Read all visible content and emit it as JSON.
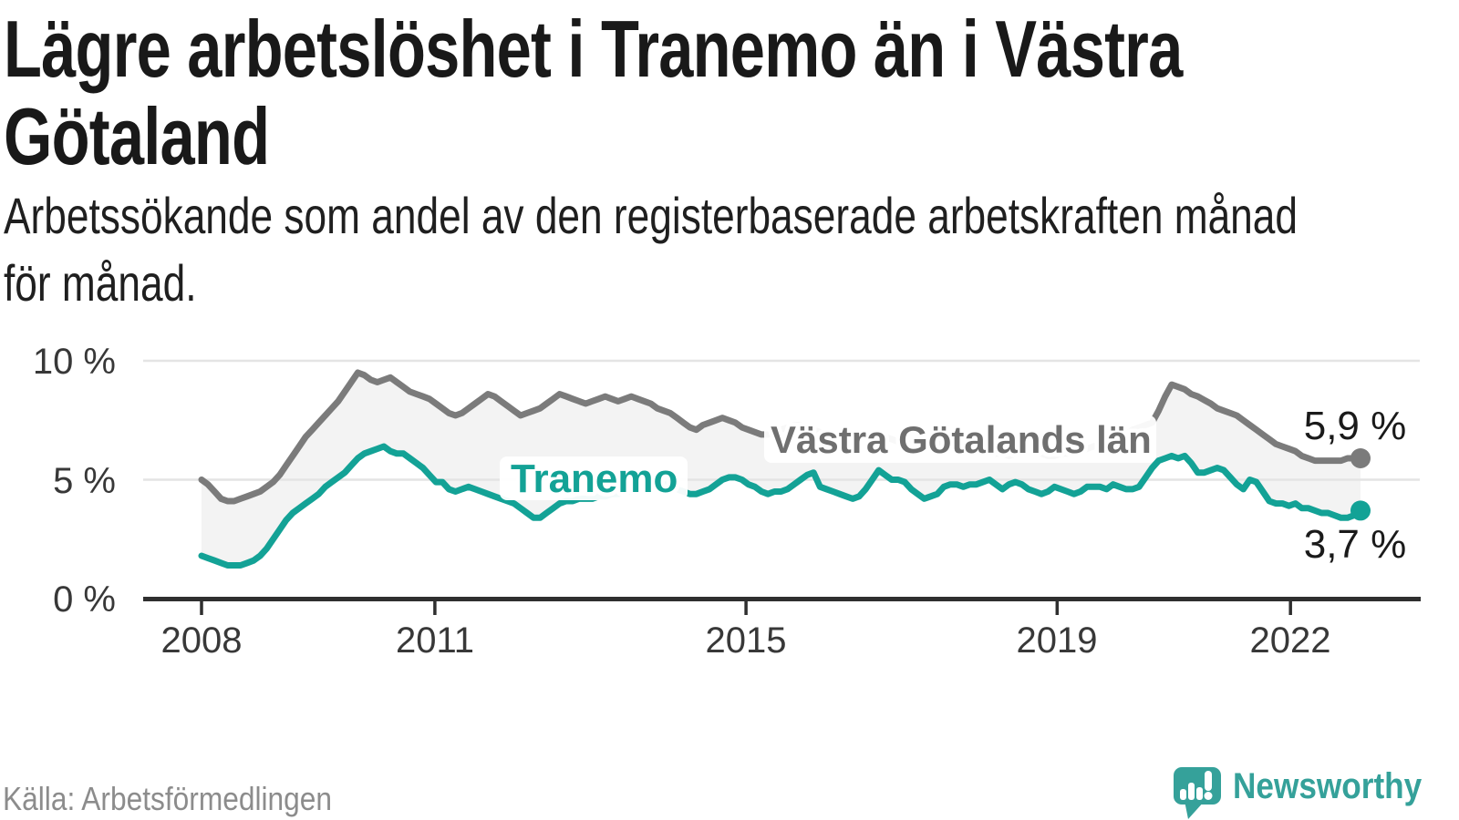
{
  "header": {
    "title_lines": [
      "Lägre arbetslöshet i Tranemo än i Västra",
      "Götaland"
    ],
    "subtitle_lines": [
      "Arbetssökande som andel av den registerbaserade arbetskraften månad",
      "för månad."
    ]
  },
  "chart_data": {
    "type": "line",
    "title": "Lägre arbetslöshet i Tranemo än i Västra Götaland",
    "subtitle": "Arbetssökande som andel av den registerbaserade arbetskraften månad för månad.",
    "unit": "%",
    "x_start": "2008-01",
    "x_end": "2022-11",
    "x_frequency": "monthly",
    "ylim": [
      0,
      10.5
    ],
    "grid": "horizontal",
    "yticks": [
      0,
      5,
      10
    ],
    "ytick_labels": [
      "0 %",
      "5 %",
      "10 %"
    ],
    "xticks": [
      2008,
      2011,
      2015,
      2019,
      2022
    ],
    "xtick_labels": [
      "2008",
      "2011",
      "2015",
      "2019",
      "2022"
    ],
    "legend_position": "inline-labels-on-lines",
    "fill_between_color": "#f3f3f3",
    "series": [
      {
        "name": "Västra Götalands län",
        "color": "#7b7b7b",
        "end_label": "5,9 %",
        "end_value": 5.9,
        "values": [
          5.0,
          4.8,
          4.5,
          4.2,
          4.1,
          4.1,
          4.2,
          4.3,
          4.4,
          4.5,
          4.7,
          4.9,
          5.2,
          5.6,
          6.0,
          6.4,
          6.8,
          7.1,
          7.4,
          7.7,
          8.0,
          8.3,
          8.7,
          9.1,
          9.5,
          9.4,
          9.2,
          9.1,
          9.2,
          9.3,
          9.1,
          8.9,
          8.7,
          8.6,
          8.5,
          8.4,
          8.2,
          8.0,
          7.8,
          7.7,
          7.8,
          8.0,
          8.2,
          8.4,
          8.6,
          8.5,
          8.3,
          8.1,
          7.9,
          7.7,
          7.8,
          7.9,
          8.0,
          8.2,
          8.4,
          8.6,
          8.5,
          8.4,
          8.3,
          8.2,
          8.3,
          8.4,
          8.5,
          8.4,
          8.3,
          8.4,
          8.5,
          8.4,
          8.3,
          8.2,
          8.0,
          7.9,
          7.8,
          7.6,
          7.4,
          7.2,
          7.1,
          7.3,
          7.4,
          7.5,
          7.6,
          7.5,
          7.4,
          7.2,
          7.1,
          7.0,
          6.9,
          6.9,
          7.0,
          7.1,
          7.2,
          7.3,
          7.3,
          7.2,
          7.1,
          7.0,
          6.9,
          6.9,
          6.8,
          6.8,
          6.7,
          6.8,
          6.9,
          6.9,
          6.8,
          6.8,
          6.7,
          6.6,
          6.6,
          6.5,
          6.5,
          6.4,
          6.4,
          6.5,
          6.5,
          6.6,
          6.5,
          6.5,
          6.4,
          6.3,
          6.2,
          6.2,
          6.1,
          6.1,
          6.0,
          6.1,
          6.1,
          6.2,
          6.1,
          6.1,
          6.0,
          6.0,
          6.1,
          6.1,
          6.2,
          6.2,
          6.3,
          6.4,
          6.5,
          6.6,
          6.6,
          6.7,
          6.9,
          7.1,
          7.2,
          7.3,
          7.4,
          7.9,
          8.5,
          9.0,
          8.9,
          8.8,
          8.6,
          8.5,
          8.35,
          8.2,
          8.0,
          7.9,
          7.8,
          7.7,
          7.5,
          7.3,
          7.1,
          6.9,
          6.7,
          6.5,
          6.4,
          6.3,
          6.2,
          6.0,
          5.9,
          5.8,
          5.8,
          5.8,
          5.8,
          5.8,
          5.9,
          5.9,
          5.9
        ]
      },
      {
        "name": "Tranemo",
        "color": "#13a296",
        "end_label": "3,7 %",
        "end_value": 3.7,
        "values": [
          1.8,
          1.7,
          1.6,
          1.5,
          1.4,
          1.4,
          1.4,
          1.5,
          1.6,
          1.8,
          2.1,
          2.5,
          2.9,
          3.3,
          3.6,
          3.8,
          4.0,
          4.2,
          4.4,
          4.7,
          4.9,
          5.1,
          5.3,
          5.6,
          5.9,
          6.1,
          6.2,
          6.3,
          6.4,
          6.2,
          6.1,
          6.1,
          5.9,
          5.7,
          5.5,
          5.2,
          4.9,
          4.9,
          4.6,
          4.5,
          4.6,
          4.7,
          4.6,
          4.5,
          4.4,
          4.3,
          4.2,
          4.1,
          4.0,
          3.8,
          3.6,
          3.4,
          3.4,
          3.6,
          3.8,
          4.0,
          4.1,
          4.1,
          4.2,
          4.2,
          4.2,
          4.3,
          4.3,
          4.4,
          4.4,
          4.5,
          4.5,
          4.6,
          4.6,
          4.7,
          4.7,
          4.8,
          4.8,
          4.6,
          4.5,
          4.4,
          4.4,
          4.5,
          4.6,
          4.8,
          5.0,
          5.1,
          5.1,
          5.0,
          4.8,
          4.7,
          4.5,
          4.4,
          4.5,
          4.5,
          4.6,
          4.8,
          5.0,
          5.2,
          5.3,
          4.7,
          4.6,
          4.5,
          4.4,
          4.3,
          4.2,
          4.3,
          4.6,
          5.0,
          5.4,
          5.2,
          5.0,
          5.0,
          4.9,
          4.6,
          4.4,
          4.2,
          4.3,
          4.4,
          4.7,
          4.8,
          4.8,
          4.7,
          4.8,
          4.8,
          4.9,
          5.0,
          4.8,
          4.6,
          4.8,
          4.9,
          4.8,
          4.6,
          4.5,
          4.4,
          4.5,
          4.7,
          4.6,
          4.5,
          4.4,
          4.5,
          4.7,
          4.7,
          4.7,
          4.6,
          4.8,
          4.7,
          4.6,
          4.6,
          4.7,
          5.1,
          5.5,
          5.8,
          5.9,
          6.0,
          5.9,
          6.0,
          5.7,
          5.3,
          5.3,
          5.4,
          5.5,
          5.4,
          5.1,
          4.8,
          4.6,
          5.0,
          4.9,
          4.5,
          4.1,
          4.0,
          4.0,
          3.9,
          4.0,
          3.8,
          3.8,
          3.7,
          3.6,
          3.6,
          3.5,
          3.4,
          3.4,
          3.5,
          3.7
        ]
      }
    ]
  },
  "footer": {
    "source": "Källa: Arbetsförmedlingen",
    "brand": "Newsworthy"
  },
  "colors": {
    "accent_teal": "#13a296",
    "line_gray": "#7b7b7b",
    "label_gray": "#6f6f6f",
    "fill_between": "#f3f3f3",
    "gridline": "#e4e4e4",
    "axis": "#2f2f2f",
    "title_text": "#191919",
    "source_text": "#8c8c8c",
    "brand_teal": "#35a19a"
  }
}
